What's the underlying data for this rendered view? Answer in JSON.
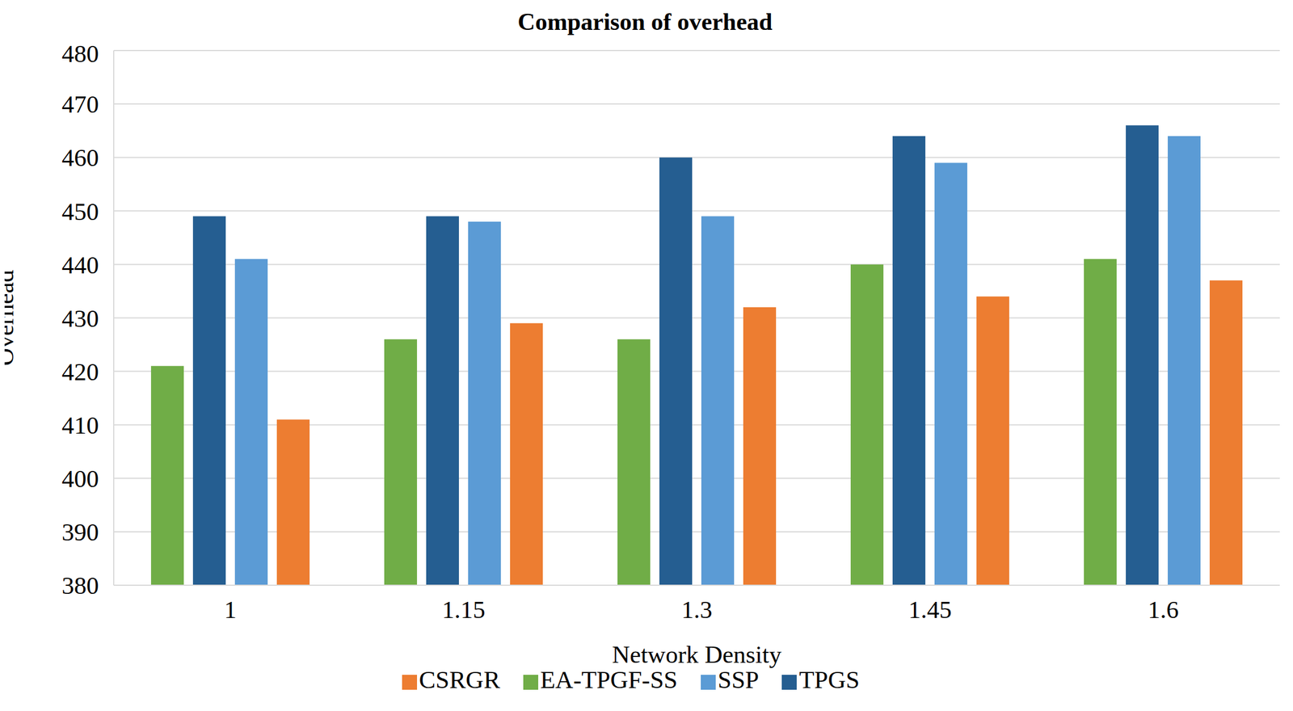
{
  "chart_data": {
    "type": "bar",
    "title": "Comparison of overhead",
    "x_label": "Network Density",
    "y_label": "Overhead",
    "categories": [
      "1",
      "1.15",
      "1.3",
      "1.45",
      "1.6"
    ],
    "series": [
      {
        "name": "EA-TPGF-SS",
        "color": "#70ad47",
        "values": [
          421,
          426,
          426,
          440,
          441
        ]
      },
      {
        "name": "TPGS",
        "color": "#255e91",
        "values": [
          449,
          449,
          460,
          464,
          466
        ]
      },
      {
        "name": "SSP",
        "color": "#5b9bd5",
        "values": [
          441,
          448,
          449,
          459,
          464
        ]
      },
      {
        "name": "CSRGR",
        "color": "#ed7d31",
        "values": [
          411,
          429,
          432,
          434,
          437
        ]
      }
    ],
    "ylim": [
      380,
      480
    ],
    "yticks": [
      380,
      390,
      400,
      410,
      420,
      430,
      440,
      450,
      460,
      470,
      480
    ],
    "grid": true,
    "legend": "bottom"
  }
}
